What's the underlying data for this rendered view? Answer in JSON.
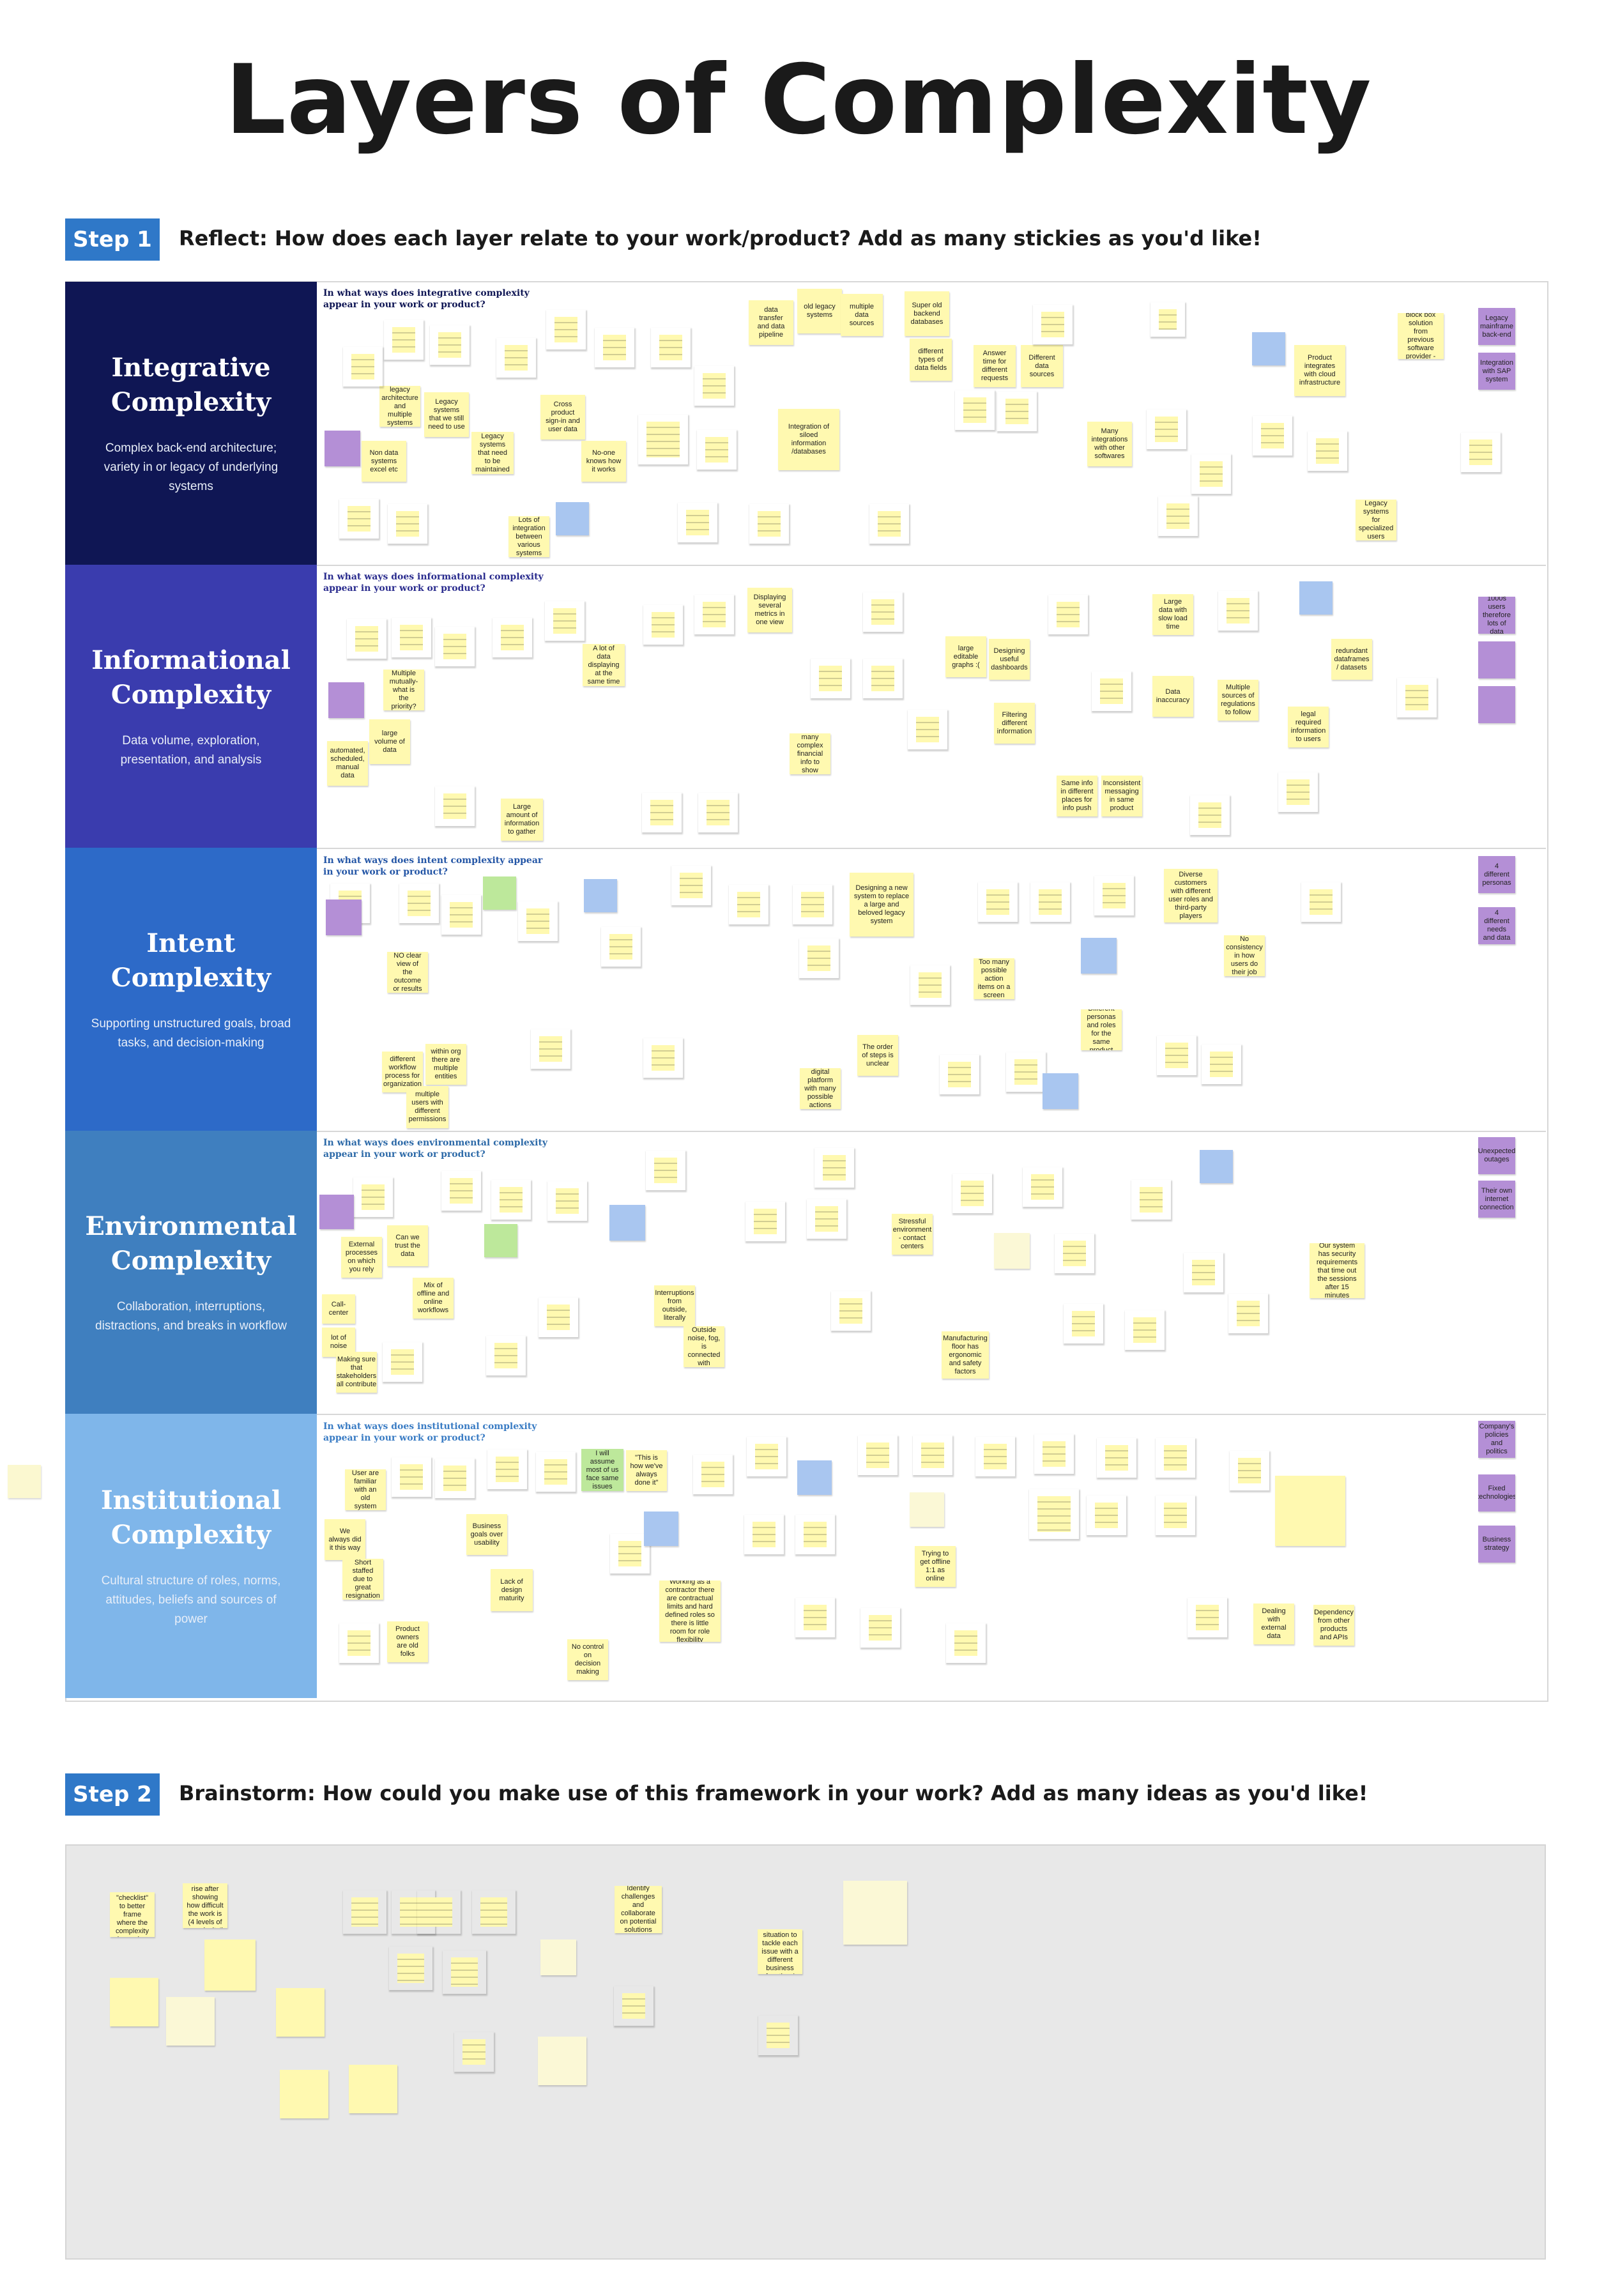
{
  "title": "Layers of Complexity",
  "step1": {
    "badge": "Step 1",
    "text": "Reflect: How does each layer relate to your work/product? Add as many stickies as you'd like!"
  },
  "step2": {
    "badge": "Step 2",
    "text": "Brainstorm: How could you make use of this framework in your work? Add as many ideas as you'd like!",
    "notes": [
      "Use this framework as a \"checklist\" to better frame where the complexity is coming from in a project",
      "Ask for a rise after showing how difficult the work is (4 levels of complexity!)",
      "Identify challenges and collaborate on potential solutions",
      "Map out the current situation to tackle each issue with a different business function / strategy"
    ]
  },
  "colors": {
    "integrative": "#0f1654",
    "informational": "#3a3cae",
    "intent": "#2d6ac8",
    "environmental": "#3f7fbf",
    "institutional": "#7fb6ea",
    "step_badge": "#2f78c8",
    "sticky": "#fff9b0",
    "step2_bg": "#e8e8e8"
  },
  "layers": [
    {
      "id": "integrative",
      "title": "Integrative Complexity",
      "description": "Complex back-end architecture; variety in or legacy of underlying systems",
      "prompt": "In what ways does integrative complexity appear in your work or product?",
      "notes": [
        "data transfer and data pipeline",
        "old legacy systems",
        "multiple data sources",
        "Super old backend databases",
        "different types of data fields",
        "Answer time for different requests",
        "Different data sources",
        "Legacy systems that we still need to use",
        "legacy architecture and multiple systems",
        "Cross product sign-in and user data",
        "Non data systems excel etc",
        "No-one knows how it works",
        "Integration of siloed information /databases",
        "Many integrations with other softwares",
        "Product integrates with cloud infrastructure",
        "Taking over block box solution from previous software provider - yikes",
        "Legacy systems for specialized users",
        "Legacy systems that need to be maintained",
        "Lots of integration between various systems",
        "Legacy mainframe back-end",
        "Integration with SAP system"
      ]
    },
    {
      "id": "informational",
      "title": "Informational Complexity",
      "description": "Data volume, exploration, presentation, and analysis",
      "prompt": "In what ways does informational complexity appear in your work or product?",
      "notes": [
        "Displaying several metrics in one view",
        "large editable graphs :(",
        "Designing useful dashboards",
        "Large data with slow load time",
        "Multiple mutually- what is the priority?",
        "large volume of data",
        "A lot of data displaying at the same time",
        "many complex financial info to show",
        "Data inaccuracy",
        "Multiple sources of regulations to follow",
        "Filtering different information",
        "Same info in different places for info push",
        "Inconsistent messaging in same product",
        "legal required information to users",
        "Large amount of information to gather",
        "automated, scheduled, manual data",
        "redundant dataframes / datasets",
        "1000s users therefore lots of data"
      ]
    },
    {
      "id": "intent",
      "title": "Intent Complexity",
      "description": "Supporting unstructured goals, broad tasks, and decision-making",
      "prompt": "In what ways does intent complexity appear in your work or product?",
      "notes": [
        "Designing a new system to replace a large and beloved legacy system",
        "Diverse customers with different user roles and third-party players",
        "NO clear view of the outcome or results",
        "Too many possible action items on a screen",
        "No consistency in how users do their job",
        "different workflow process for organization",
        "within org there are multiple entities",
        "multiple users with different permissions",
        "The order of steps is unclear",
        "digital platform with many possible actions",
        "Different personas and roles for the same product",
        "4 different personas",
        "4 different needs and data"
      ]
    },
    {
      "id": "environmental",
      "title": "Environmental Complexity",
      "description": "Collaboration, interruptions, distractions, and breaks in workflow",
      "prompt": "In what ways does environmental complexity appear in your work or product?",
      "notes": [
        "Can we trust the data",
        "Mix of offline and online workflows",
        "External processes on which you rely",
        "Call-center",
        "lot of noise",
        "Making sure that stakeholders all contribute",
        "Stressful environment - contact centers",
        "Interruptions from outside, literally",
        "Outside noise, fog, is connected with",
        "Manufacturing floor has ergonomic and safety factors",
        "Our system has security requirements that time out the sessions after 15 minutes",
        "Unexpected outages",
        "Their own internet connection"
      ]
    },
    {
      "id": "institutional",
      "title": "Institutional Complexity",
      "description": "Cultural structure of roles, norms, attitudes, beliefs and sources of power",
      "prompt": "In what ways does institutional complexity appear in your work or product?",
      "notes": [
        "User are familiar with an old system",
        "We always did it this way",
        "Short staffed due to great resignation",
        "Business goals over usability",
        "Lack of design maturity",
        "I will assume most of us face same issues",
        "\"This is how we've always done it\"",
        "Working as a contractor there are contractual limits and hard defined roles so there is little room for role flexibility",
        "Product owners are old folks",
        "No control on decision making",
        "Trying to get offline 1:1 as online",
        "Dealing with external data",
        "Dependency from other products and APIs",
        "Company's policies and politics",
        "Fixed technologies",
        "Business strategy"
      ]
    }
  ]
}
